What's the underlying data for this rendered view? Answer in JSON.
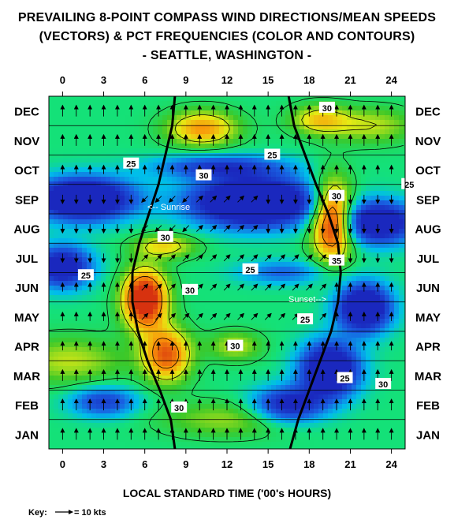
{
  "chart_data": {
    "type": "heatmap",
    "title": [
      "PREVAILING 8-POINT COMPASS WIND DIRECTIONS/MEAN SPEEDS",
      "(VECTORS) & PCT FREQUENCIES (COLOR AND CONTOURS)",
      "- SEATTLE, WASHINGTON -"
    ],
    "xlabel": "LOCAL STANDARD TIME ('00's HOURS)",
    "x_ticks": [
      "0",
      "3",
      "6",
      "9",
      "12",
      "15",
      "18",
      "21",
      "24"
    ],
    "x_range": [
      -1,
      25
    ],
    "months": [
      "JAN",
      "FEB",
      "MAR",
      "APR",
      "MAY",
      "JUN",
      "JUL",
      "AUG",
      "SEP",
      "OCT",
      "NOV",
      "DEC"
    ],
    "contour_labels": [
      {
        "text": "25",
        "hour": 5.0,
        "month": 9.7
      },
      {
        "text": "30",
        "hour": 10.3,
        "month": 9.3
      },
      {
        "text": "25",
        "hour": 15.3,
        "month": 10.0
      },
      {
        "text": "25",
        "hour": 25.3,
        "month": 9.0
      },
      {
        "text": "30",
        "hour": 19.3,
        "month": 11.6
      },
      {
        "text": "30",
        "hour": 20.0,
        "month": 8.6
      },
      {
        "text": "30",
        "hour": 7.5,
        "month": 7.2
      },
      {
        "text": "35",
        "hour": 20.0,
        "month": 6.4
      },
      {
        "text": "25",
        "hour": 13.7,
        "month": 6.1
      },
      {
        "text": "25",
        "hour": 1.7,
        "month": 5.9
      },
      {
        "text": "30",
        "hour": 9.3,
        "month": 5.4
      },
      {
        "text": "25",
        "hour": 17.7,
        "month": 4.4
      },
      {
        "text": "30",
        "hour": 12.6,
        "month": 3.5
      },
      {
        "text": "25",
        "hour": 20.6,
        "month": 2.4
      },
      {
        "text": "30",
        "hour": 23.4,
        "month": 2.2
      },
      {
        "text": "30",
        "hour": 8.5,
        "month": 1.4
      }
    ],
    "sunrise_label": "<-- Sunrise",
    "sunset_label": "Sunset-->",
    "sunrise_hours": [
      8.2,
      7.9,
      7.1,
      6.2,
      5.5,
      5.1,
      5.1,
      5.6,
      6.3,
      7.0,
      7.5,
      8.0,
      8.2
    ],
    "sunset_hours": [
      16.6,
      17.2,
      18.0,
      18.8,
      19.6,
      20.1,
      20.3,
      20.1,
      19.4,
      18.5,
      17.7,
      16.9,
      16.5
    ],
    "hotspots": [
      {
        "hour": 6.0,
        "month": 5.1,
        "amp": 20,
        "sx": 1.0,
        "sy": 1.0
      },
      {
        "hour": 7.6,
        "month": 3.2,
        "amp": 14,
        "sx": 1.1,
        "sy": 0.9
      },
      {
        "hour": 19.7,
        "month": 7.8,
        "amp": 20,
        "sx": 0.95,
        "sy": 1.3
      },
      {
        "hour": 10.2,
        "month": 10.9,
        "amp": 11,
        "sx": 1.6,
        "sy": 0.6
      },
      {
        "hour": 18.7,
        "month": 11.2,
        "amp": 8,
        "sx": 1.3,
        "sy": 0.5
      },
      {
        "hour": 7.5,
        "month": 6.9,
        "amp": 8,
        "sx": 1.4,
        "sy": 0.4
      },
      {
        "hour": 12.6,
        "month": 3.5,
        "amp": 6,
        "sx": 1.2,
        "sy": 0.5
      },
      {
        "hour": 0.5,
        "month": 3.0,
        "amp": 6,
        "sx": 2.5,
        "sy": 0.8
      },
      {
        "hour": 12.0,
        "month": 1.0,
        "amp": 5,
        "sx": 3.0,
        "sy": 0.6
      },
      {
        "hour": 22.5,
        "month": 11.0,
        "amp": 6,
        "sx": 2.0,
        "sy": 0.6
      }
    ],
    "coldspots": [
      {
        "hour": 1.5,
        "month": 8.5,
        "amp": 22,
        "sx": 2.2,
        "sy": 0.7
      },
      {
        "hour": 0.0,
        "month": 6.2,
        "amp": 16,
        "sx": 1.3,
        "sy": 0.7
      },
      {
        "hour": 14.0,
        "month": 8.4,
        "amp": 24,
        "sx": 2.8,
        "sy": 0.8
      },
      {
        "hour": 23.0,
        "month": 7.7,
        "amp": 18,
        "sx": 1.7,
        "sy": 0.7
      },
      {
        "hour": 22.0,
        "month": 4.8,
        "amp": 20,
        "sx": 1.2,
        "sy": 0.8
      },
      {
        "hour": 19.5,
        "month": 2.7,
        "amp": 20,
        "sx": 1.3,
        "sy": 0.9
      },
      {
        "hour": 16.5,
        "month": 1.5,
        "amp": 14,
        "sx": 1.6,
        "sy": 0.6
      },
      {
        "hour": 11.5,
        "month": 9.6,
        "amp": 10,
        "sx": 3.0,
        "sy": 0.4
      },
      {
        "hour": 3.0,
        "month": 1.6,
        "amp": 10,
        "sx": 1.5,
        "sy": 0.5
      },
      {
        "hour": 16.0,
        "month": 6.0,
        "amp": 7,
        "sx": 2.0,
        "sy": 0.4
      }
    ]
  },
  "key": {
    "label": "Key:",
    "value": "= 10 kts"
  }
}
